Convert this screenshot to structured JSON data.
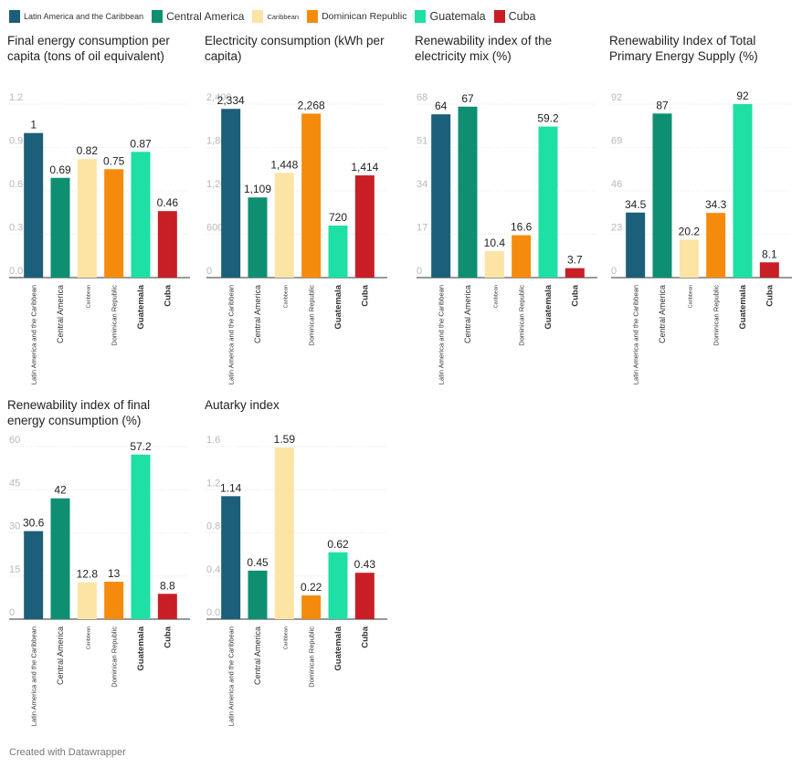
{
  "legend": [
    {
      "label": "Latin America and the Caribbean",
      "color": "#1b5f7a"
    },
    {
      "label": "Central America",
      "color": "#0e8f72"
    },
    {
      "label": "Caribbean",
      "color": "#fbe4a4"
    },
    {
      "label": "Dominican Republic",
      "color": "#f58b0c"
    },
    {
      "label": "Guatemala",
      "color": "#1ee0a4"
    },
    {
      "label": "Cuba",
      "color": "#c71f25"
    }
  ],
  "credit": "Created with Datawrapper",
  "chart_data": [
    {
      "type": "bar",
      "title": "Final energy consumption per capita (tons of oil equivalent)",
      "categories": [
        "Latin America and the Caribbean",
        "Central America",
        "Caribbean",
        "Dominican Republic",
        "Guatemala",
        "Cuba"
      ],
      "values": [
        1,
        0.69,
        0.82,
        0.75,
        0.87,
        0.46
      ],
      "value_labels": [
        "1",
        "0.69",
        "0.82",
        "0.75",
        "0.87",
        "0.46"
      ],
      "yticks": [
        "0.0",
        "0.3",
        "0.6",
        "0.9",
        "1.2"
      ],
      "ylim": [
        0,
        1.2
      ],
      "grid": true
    },
    {
      "type": "bar",
      "title": "Electricity consumption (kWh per capita)",
      "categories": [
        "Latin America and the Caribbean",
        "Central America",
        "Caribbean",
        "Dominican Republic",
        "Guatemala",
        "Cuba"
      ],
      "values": [
        2334,
        1109,
        1448,
        2268,
        720,
        1414
      ],
      "value_labels": [
        "2,334",
        "1,109",
        "1,448",
        "2,268",
        "720",
        "1,414"
      ],
      "yticks": [
        "0",
        "600",
        "1,200",
        "1,800",
        "2,400"
      ],
      "ylim": [
        0,
        2400
      ],
      "grid": true
    },
    {
      "type": "bar",
      "title": "Renewability index of the electricity mix (%)",
      "categories": [
        "Latin America and the Caribbean",
        "Central America",
        "Caribbean",
        "Dominican Republic",
        "Guatemala",
        "Cuba"
      ],
      "values": [
        64,
        67,
        10.4,
        16.6,
        59.2,
        3.7
      ],
      "value_labels": [
        "64",
        "67",
        "10.4",
        "16.6",
        "59.2",
        "3.7"
      ],
      "yticks": [
        "0",
        "17",
        "34",
        "51",
        "68"
      ],
      "ylim": [
        0,
        68
      ],
      "grid": true
    },
    {
      "type": "bar",
      "title": "Renewability Index of Total Primary Energy Supply (%)",
      "categories": [
        "Latin America and the Caribbean",
        "Central America",
        "Caribbean",
        "Dominican Republic",
        "Guatemala",
        "Cuba"
      ],
      "values": [
        34.5,
        87,
        20.2,
        34.3,
        92,
        8.1
      ],
      "value_labels": [
        "34.5",
        "87",
        "20.2",
        "34.3",
        "92",
        "8.1"
      ],
      "yticks": [
        "0",
        "23",
        "46",
        "69",
        "92"
      ],
      "ylim": [
        0,
        92
      ],
      "grid": true
    },
    {
      "type": "bar",
      "title": "Renewability index of final energy consumption (%)",
      "categories": [
        "Latin America and the Caribbean",
        "Central America",
        "Caribbean",
        "Dominican Republic",
        "Guatemala",
        "Cuba"
      ],
      "values": [
        30.6,
        42,
        12.8,
        13,
        57.2,
        8.8
      ],
      "value_labels": [
        "30.6",
        "42",
        "12.8",
        "13",
        "57.2",
        "8.8"
      ],
      "yticks": [
        "0",
        "15",
        "30",
        "45",
        "60"
      ],
      "ylim": [
        0,
        60
      ],
      "grid": true
    },
    {
      "type": "bar",
      "title": "Autarky index",
      "categories": [
        "Latin America and the Caribbean",
        "Central America",
        "Caribbean",
        "Dominican Republic",
        "Guatemala",
        "Cuba"
      ],
      "values": [
        1.14,
        0.45,
        1.59,
        0.22,
        0.62,
        0.43
      ],
      "value_labels": [
        "1.14",
        "0.45",
        "1.59",
        "0.22",
        "0.62",
        "0.43"
      ],
      "yticks": [
        "0.0",
        "0.4",
        "0.8",
        "1.2",
        "1.6"
      ],
      "ylim": [
        0,
        1.6
      ],
      "grid": true
    }
  ]
}
